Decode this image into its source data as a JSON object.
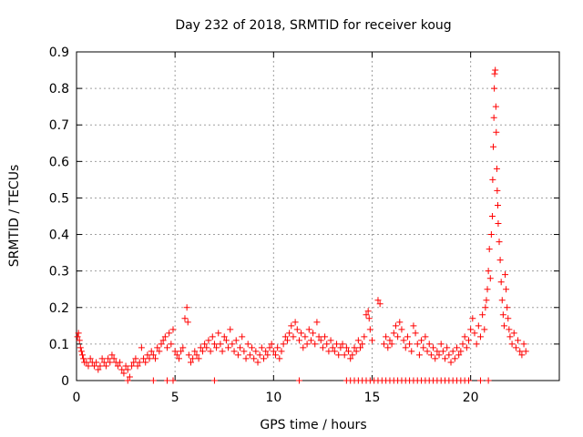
{
  "chart_data": {
    "type": "scatter",
    "title": "Day 232 of 2018, SRMTID for receiver koug",
    "xlabel": "GPS time / hours",
    "ylabel": "SRMTID / TECUs",
    "xlim": [
      0,
      24.5
    ],
    "ylim": [
      0,
      0.9
    ],
    "xticks": [
      0,
      5,
      10,
      15,
      20
    ],
    "yticks": [
      0,
      0.1,
      0.2,
      0.3,
      0.4,
      0.5,
      0.6,
      0.7,
      0.8,
      0.9
    ],
    "grid": true,
    "marker": "+",
    "color": "#ff0000",
    "series": [
      {
        "name": "SRMTID",
        "points": [
          [
            0.05,
            0.12
          ],
          [
            0.1,
            0.13
          ],
          [
            0.15,
            0.11
          ],
          [
            0.2,
            0.09
          ],
          [
            0.25,
            0.08
          ],
          [
            0.3,
            0.07
          ],
          [
            0.35,
            0.06
          ],
          [
            0.4,
            0.05
          ],
          [
            0.5,
            0.05
          ],
          [
            0.6,
            0.04
          ],
          [
            0.7,
            0.06
          ],
          [
            0.8,
            0.05
          ],
          [
            0.9,
            0.04
          ],
          [
            1.0,
            0.05
          ],
          [
            1.1,
            0.03
          ],
          [
            1.2,
            0.04
          ],
          [
            1.3,
            0.06
          ],
          [
            1.4,
            0.05
          ],
          [
            1.5,
            0.04
          ],
          [
            1.6,
            0.06
          ],
          [
            1.7,
            0.05
          ],
          [
            1.8,
            0.07
          ],
          [
            1.9,
            0.06
          ],
          [
            2.0,
            0.05
          ],
          [
            2.1,
            0.04
          ],
          [
            2.2,
            0.05
          ],
          [
            2.3,
            0.03
          ],
          [
            2.4,
            0.02
          ],
          [
            2.5,
            0.04
          ],
          [
            2.6,
            0.03
          ],
          [
            2.7,
            0.01
          ],
          [
            2.8,
            0.04
          ],
          [
            2.9,
            0.05
          ],
          [
            3.0,
            0.06
          ],
          [
            3.1,
            0.04
          ],
          [
            3.2,
            0.05
          ],
          [
            3.3,
            0.09
          ],
          [
            3.4,
            0.06
          ],
          [
            3.5,
            0.05
          ],
          [
            3.6,
            0.07
          ],
          [
            3.7,
            0.06
          ],
          [
            3.8,
            0.08
          ],
          [
            3.9,
            0.07
          ],
          [
            4.0,
            0.06
          ],
          [
            4.1,
            0.09
          ],
          [
            4.2,
            0.08
          ],
          [
            4.3,
            0.1
          ],
          [
            4.4,
            0.11
          ],
          [
            4.5,
            0.12
          ],
          [
            4.6,
            0.09
          ],
          [
            4.7,
            0.13
          ],
          [
            4.8,
            0.1
          ],
          [
            4.9,
            0.14
          ],
          [
            5.0,
            0.08
          ],
          [
            5.1,
            0.07
          ],
          [
            5.2,
            0.06
          ],
          [
            5.3,
            0.08
          ],
          [
            5.4,
            0.09
          ],
          [
            5.5,
            0.17
          ],
          [
            5.6,
            0.2
          ],
          [
            5.65,
            0.16
          ],
          [
            5.7,
            0.07
          ],
          [
            5.8,
            0.05
          ],
          [
            5.9,
            0.06
          ],
          [
            6.0,
            0.08
          ],
          [
            6.1,
            0.07
          ],
          [
            6.2,
            0.06
          ],
          [
            6.3,
            0.09
          ],
          [
            6.4,
            0.08
          ],
          [
            6.5,
            0.1
          ],
          [
            6.6,
            0.09
          ],
          [
            6.7,
            0.11
          ],
          [
            6.8,
            0.08
          ],
          [
            6.9,
            0.12
          ],
          [
            7.0,
            0.1
          ],
          [
            7.1,
            0.09
          ],
          [
            7.2,
            0.13
          ],
          [
            7.3,
            0.1
          ],
          [
            7.4,
            0.08
          ],
          [
            7.5,
            0.12
          ],
          [
            7.6,
            0.11
          ],
          [
            7.7,
            0.09
          ],
          [
            7.8,
            0.14
          ],
          [
            7.9,
            0.1
          ],
          [
            8.0,
            0.08
          ],
          [
            8.1,
            0.11
          ],
          [
            8.2,
            0.07
          ],
          [
            8.3,
            0.09
          ],
          [
            8.4,
            0.12
          ],
          [
            8.5,
            0.08
          ],
          [
            8.6,
            0.06
          ],
          [
            8.7,
            0.1
          ],
          [
            8.8,
            0.07
          ],
          [
            8.9,
            0.09
          ],
          [
            9.0,
            0.06
          ],
          [
            9.1,
            0.08
          ],
          [
            9.2,
            0.05
          ],
          [
            9.3,
            0.07
          ],
          [
            9.4,
            0.09
          ],
          [
            9.5,
            0.06
          ],
          [
            9.6,
            0.08
          ],
          [
            9.7,
            0.07
          ],
          [
            9.8,
            0.09
          ],
          [
            9.9,
            0.1
          ],
          [
            10.0,
            0.08
          ],
          [
            10.1,
            0.07
          ],
          [
            10.2,
            0.09
          ],
          [
            10.3,
            0.06
          ],
          [
            10.4,
            0.08
          ],
          [
            10.5,
            0.1
          ],
          [
            10.6,
            0.12
          ],
          [
            10.7,
            0.11
          ],
          [
            10.8,
            0.13
          ],
          [
            10.9,
            0.15
          ],
          [
            11.0,
            0.12
          ],
          [
            11.1,
            0.16
          ],
          [
            11.2,
            0.14
          ],
          [
            11.3,
            0.11
          ],
          [
            11.4,
            0.13
          ],
          [
            11.5,
            0.09
          ],
          [
            11.6,
            0.12
          ],
          [
            11.7,
            0.1
          ],
          [
            11.8,
            0.14
          ],
          [
            11.9,
            0.11
          ],
          [
            12.0,
            0.13
          ],
          [
            12.1,
            0.1
          ],
          [
            12.2,
            0.16
          ],
          [
            12.3,
            0.12
          ],
          [
            12.4,
            0.11
          ],
          [
            12.5,
            0.09
          ],
          [
            12.6,
            0.12
          ],
          [
            12.7,
            0.1
          ],
          [
            12.8,
            0.08
          ],
          [
            12.9,
            0.11
          ],
          [
            13.0,
            0.09
          ],
          [
            13.1,
            0.08
          ],
          [
            13.2,
            0.1
          ],
          [
            13.3,
            0.07
          ],
          [
            13.4,
            0.09
          ],
          [
            13.5,
            0.1
          ],
          [
            13.6,
            0.07
          ],
          [
            13.7,
            0.09
          ],
          [
            13.8,
            0.08
          ],
          [
            13.9,
            0.06
          ],
          [
            14.0,
            0.07
          ],
          [
            14.1,
            0.09
          ],
          [
            14.2,
            0.08
          ],
          [
            14.3,
            0.11
          ],
          [
            14.4,
            0.09
          ],
          [
            14.5,
            0.1
          ],
          [
            14.6,
            0.12
          ],
          [
            14.7,
            0.18
          ],
          [
            14.8,
            0.19
          ],
          [
            14.85,
            0.17
          ],
          [
            14.9,
            0.14
          ],
          [
            15.0,
            0.11
          ],
          [
            15.3,
            0.22
          ],
          [
            15.4,
            0.21
          ],
          [
            15.6,
            0.1
          ],
          [
            15.7,
            0.12
          ],
          [
            15.8,
            0.09
          ],
          [
            15.9,
            0.11
          ],
          [
            16.0,
            0.1
          ],
          [
            16.1,
            0.13
          ],
          [
            16.2,
            0.15
          ],
          [
            16.3,
            0.12
          ],
          [
            16.4,
            0.16
          ],
          [
            16.5,
            0.14
          ],
          [
            16.6,
            0.11
          ],
          [
            16.7,
            0.09
          ],
          [
            16.8,
            0.12
          ],
          [
            16.9,
            0.1
          ],
          [
            17.0,
            0.08
          ],
          [
            17.1,
            0.15
          ],
          [
            17.2,
            0.13
          ],
          [
            17.3,
            0.1
          ],
          [
            17.4,
            0.07
          ],
          [
            17.5,
            0.11
          ],
          [
            17.6,
            0.09
          ],
          [
            17.7,
            0.12
          ],
          [
            17.8,
            0.08
          ],
          [
            17.9,
            0.1
          ],
          [
            18.0,
            0.07
          ],
          [
            18.1,
            0.09
          ],
          [
            18.2,
            0.06
          ],
          [
            18.3,
            0.08
          ],
          [
            18.4,
            0.07
          ],
          [
            18.5,
            0.1
          ],
          [
            18.6,
            0.08
          ],
          [
            18.7,
            0.06
          ],
          [
            18.8,
            0.09
          ],
          [
            18.9,
            0.07
          ],
          [
            19.0,
            0.05
          ],
          [
            19.1,
            0.08
          ],
          [
            19.2,
            0.06
          ],
          [
            19.3,
            0.09
          ],
          [
            19.4,
            0.07
          ],
          [
            19.5,
            0.08
          ],
          [
            19.6,
            0.1
          ],
          [
            19.7,
            0.12
          ],
          [
            19.8,
            0.09
          ],
          [
            19.9,
            0.11
          ],
          [
            20.0,
            0.14
          ],
          [
            20.1,
            0.17
          ],
          [
            20.2,
            0.13
          ],
          [
            20.3,
            0.1
          ],
          [
            20.4,
            0.15
          ],
          [
            20.5,
            0.12
          ],
          [
            20.6,
            0.18
          ],
          [
            20.7,
            0.14
          ],
          [
            20.75,
            0.2
          ],
          [
            20.8,
            0.22
          ],
          [
            20.85,
            0.25
          ],
          [
            20.9,
            0.3
          ],
          [
            20.95,
            0.36
          ],
          [
            21.0,
            0.28
          ],
          [
            21.05,
            0.4
          ],
          [
            21.1,
            0.45
          ],
          [
            21.12,
            0.55
          ],
          [
            21.15,
            0.64
          ],
          [
            21.18,
            0.72
          ],
          [
            21.2,
            0.8
          ],
          [
            21.22,
            0.84
          ],
          [
            21.25,
            0.85
          ],
          [
            21.28,
            0.75
          ],
          [
            21.3,
            0.68
          ],
          [
            21.33,
            0.58
          ],
          [
            21.35,
            0.52
          ],
          [
            21.38,
            0.48
          ],
          [
            21.4,
            0.43
          ],
          [
            21.45,
            0.38
          ],
          [
            21.5,
            0.33
          ],
          [
            21.55,
            0.27
          ],
          [
            21.6,
            0.22
          ],
          [
            21.65,
            0.18
          ],
          [
            21.7,
            0.15
          ],
          [
            21.75,
            0.29
          ],
          [
            21.8,
            0.25
          ],
          [
            21.85,
            0.2
          ],
          [
            21.9,
            0.17
          ],
          [
            21.95,
            0.14
          ],
          [
            22.0,
            0.12
          ],
          [
            22.1,
            0.1
          ],
          [
            22.2,
            0.13
          ],
          [
            22.3,
            0.09
          ],
          [
            22.4,
            0.11
          ],
          [
            22.5,
            0.08
          ],
          [
            22.6,
            0.07
          ],
          [
            22.7,
            0.1
          ],
          [
            22.8,
            0.08
          ],
          [
            2.6,
            0
          ],
          [
            3.9,
            0
          ],
          [
            4.6,
            0
          ],
          [
            4.9,
            0
          ],
          [
            7.0,
            0
          ],
          [
            11.3,
            0
          ],
          [
            13.7,
            0
          ],
          [
            13.9,
            0
          ],
          [
            14.1,
            0
          ],
          [
            14.3,
            0
          ],
          [
            14.5,
            0
          ],
          [
            14.7,
            0
          ],
          [
            14.9,
            0
          ],
          [
            15.1,
            0
          ],
          [
            15.3,
            0
          ],
          [
            15.5,
            0
          ],
          [
            15.7,
            0
          ],
          [
            15.9,
            0
          ],
          [
            16.1,
            0
          ],
          [
            16.3,
            0
          ],
          [
            16.5,
            0
          ],
          [
            16.7,
            0
          ],
          [
            16.9,
            0
          ],
          [
            17.1,
            0
          ],
          [
            17.3,
            0
          ],
          [
            17.5,
            0
          ],
          [
            17.7,
            0
          ],
          [
            17.9,
            0
          ],
          [
            18.1,
            0
          ],
          [
            18.3,
            0
          ],
          [
            18.5,
            0
          ],
          [
            18.7,
            0
          ],
          [
            18.9,
            0
          ],
          [
            19.1,
            0
          ],
          [
            19.3,
            0
          ],
          [
            19.5,
            0
          ],
          [
            19.7,
            0
          ],
          [
            19.9,
            0
          ],
          [
            20.5,
            0
          ],
          [
            20.9,
            0
          ]
        ]
      }
    ]
  }
}
